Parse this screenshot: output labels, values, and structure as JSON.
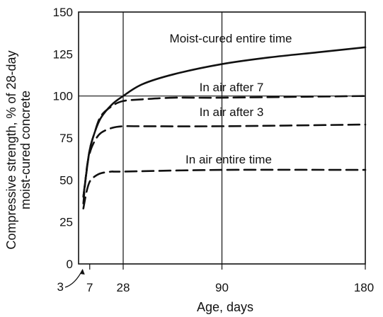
{
  "chart_data": {
    "type": "line",
    "title": "",
    "xlabel": "Age, days",
    "ylabel_lines": [
      "Compressive strength, % of 28-day",
      "moist-cured concrete"
    ],
    "xlim": [
      0,
      180
    ],
    "ylim": [
      0,
      150
    ],
    "x_ticks": [
      {
        "value": 3,
        "label": "3"
      },
      {
        "value": 7,
        "label": "7"
      },
      {
        "value": 28,
        "label": "28"
      },
      {
        "value": 90,
        "label": "90"
      },
      {
        "value": 180,
        "label": "180"
      }
    ],
    "y_ticks": [
      0,
      25,
      50,
      75,
      100,
      125,
      150
    ],
    "gridlines": {
      "x": [
        28,
        90
      ],
      "y": [
        100
      ]
    },
    "series": [
      {
        "name": "Moist-cured entire time",
        "style": "solid",
        "points": [
          [
            3,
            40
          ],
          [
            5,
            55
          ],
          [
            7,
            68
          ],
          [
            10,
            78
          ],
          [
            14,
            87
          ],
          [
            21,
            95
          ],
          [
            28,
            100
          ],
          [
            40,
            107
          ],
          [
            60,
            113
          ],
          [
            90,
            119
          ],
          [
            120,
            123
          ],
          [
            150,
            126
          ],
          [
            180,
            129
          ]
        ]
      },
      {
        "name": "In air after 7",
        "style": "dashed",
        "points": [
          [
            3,
            40
          ],
          [
            5,
            55
          ],
          [
            7,
            68
          ],
          [
            10,
            78
          ],
          [
            14,
            88
          ],
          [
            21,
            94
          ],
          [
            28,
            97
          ],
          [
            40,
            98
          ],
          [
            60,
            99
          ],
          [
            90,
            99
          ],
          [
            180,
            100
          ]
        ]
      },
      {
        "name": "In air after 3",
        "style": "dashed",
        "points": [
          [
            3,
            36
          ],
          [
            5,
            56
          ],
          [
            7,
            66
          ],
          [
            10,
            73
          ],
          [
            14,
            78
          ],
          [
            21,
            81
          ],
          [
            28,
            82
          ],
          [
            40,
            82
          ],
          [
            90,
            82
          ],
          [
            180,
            83
          ]
        ]
      },
      {
        "name": "In air entire time",
        "style": "dashed",
        "points": [
          [
            3,
            33
          ],
          [
            5,
            43
          ],
          [
            7,
            49
          ],
          [
            10,
            52
          ],
          [
            14,
            54
          ],
          [
            21,
            55
          ],
          [
            28,
            55
          ],
          [
            90,
            56
          ],
          [
            180,
            56
          ]
        ]
      }
    ]
  }
}
